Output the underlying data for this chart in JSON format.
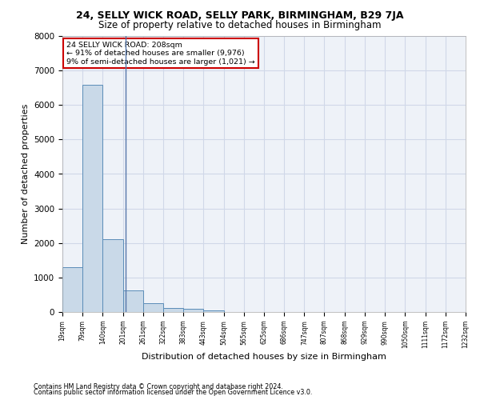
{
  "title1": "24, SELLY WICK ROAD, SELLY PARK, BIRMINGHAM, B29 7JA",
  "title2": "Size of property relative to detached houses in Birmingham",
  "xlabel": "Distribution of detached houses by size in Birmingham",
  "ylabel": "Number of detached properties",
  "footnote1": "Contains HM Land Registry data © Crown copyright and database right 2024.",
  "footnote2": "Contains public sector information licensed under the Open Government Licence v3.0.",
  "annotation_line1": "24 SELLY WICK ROAD: 208sqm",
  "annotation_line2": "← 91% of detached houses are smaller (9,976)",
  "annotation_line3": "9% of semi-detached houses are larger (1,021) →",
  "subject_size": 208,
  "bins": [
    19,
    79,
    140,
    201,
    261,
    322,
    383,
    443,
    504,
    565,
    625,
    686,
    747,
    807,
    868,
    929,
    990,
    1050,
    1111,
    1172,
    1232
  ],
  "bar_values": [
    1300,
    6580,
    2100,
    630,
    250,
    120,
    90,
    55,
    0,
    0,
    0,
    0,
    0,
    0,
    0,
    0,
    0,
    0,
    0,
    0
  ],
  "bar_color": "#c9d9e8",
  "bar_edge_color": "#5b8db8",
  "grid_color": "#d0d8e8",
  "background_color": "#eef2f8",
  "vline_color": "#5577aa",
  "ylim": [
    0,
    8000
  ],
  "annotation_box_color": "#ffffff",
  "annotation_box_edge": "#cc0000",
  "title1_fontsize": 9,
  "title2_fontsize": 8.5
}
